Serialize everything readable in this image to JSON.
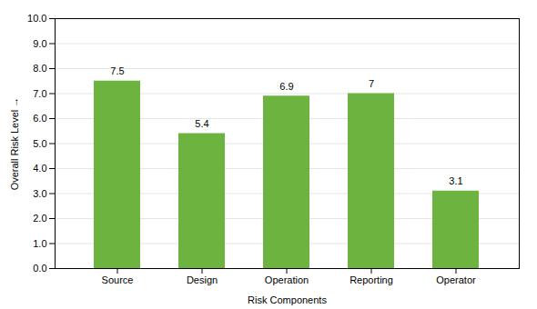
{
  "chart_data": {
    "type": "bar",
    "categories": [
      "Source",
      "Design",
      "Operation",
      "Reporting",
      "Operator"
    ],
    "values": [
      7.5,
      5.4,
      6.9,
      7.0,
      3.1
    ],
    "color": "#6db33f",
    "xlabel": "Risk Components",
    "ylabel": "Overall Risk Level",
    "ylim": [
      0,
      10.0
    ],
    "yticks": [
      {
        "value": 0.0,
        "label": "0.0"
      },
      {
        "value": 1.0,
        "label": "1.0"
      },
      {
        "value": 2.0,
        "label": "2.0"
      },
      {
        "value": 3.0,
        "label": "3.0"
      },
      {
        "value": 4.0,
        "label": "4.0"
      },
      {
        "value": 5.0,
        "label": "5.0"
      },
      {
        "value": 6.0,
        "label": "6.0"
      },
      {
        "value": 7.0,
        "label": "7.0"
      },
      {
        "value": 8.0,
        "label": "8.0"
      },
      {
        "value": 9.0,
        "label": "9.0"
      },
      {
        "value": 10.0,
        "label": "10.0"
      }
    ],
    "grid": true,
    "data_labels": true
  }
}
